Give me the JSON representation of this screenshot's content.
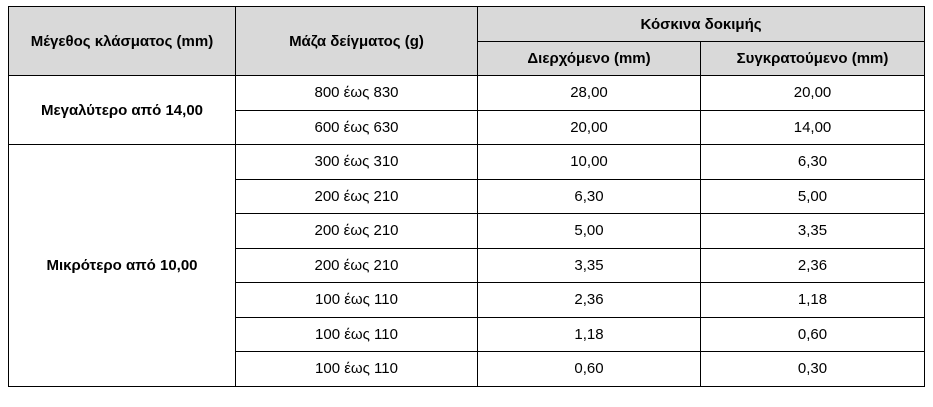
{
  "header": {
    "fraction_size": "Μέγεθος κλάσματος (mm)",
    "sample_mass": "Μάζα δείγματος (g)",
    "test_sieves": "Κόσκινα δοκιμής",
    "passing": "Διερχόμενο (mm)",
    "retained": "Συγκρατούμενο (mm)"
  },
  "groups": [
    {
      "label": "Μεγαλύτερο από 14,00",
      "rows": [
        {
          "mass": "800 έως 830",
          "passing": "28,00",
          "retained": "20,00"
        },
        {
          "mass": "600 έως 630",
          "passing": "20,00",
          "retained": "14,00"
        }
      ]
    },
    {
      "label": "Μικρότερο από 10,00",
      "rows": [
        {
          "mass": "300 έως 310",
          "passing": "10,00",
          "retained": "6,30"
        },
        {
          "mass": "200 έως 210",
          "passing": "6,30",
          "retained": "5,00"
        },
        {
          "mass": "200 έως 210",
          "passing": "5,00",
          "retained": "3,35"
        },
        {
          "mass": "200 έως 210",
          "passing": "3,35",
          "retained": "2,36"
        },
        {
          "mass": "100 έως 110",
          "passing": "2,36",
          "retained": "1,18"
        },
        {
          "mass": "100 έως 110",
          "passing": "1,18",
          "retained": "0,60"
        },
        {
          "mass": "100 έως 110",
          "passing": "0,60",
          "retained": "0,30"
        }
      ]
    }
  ]
}
